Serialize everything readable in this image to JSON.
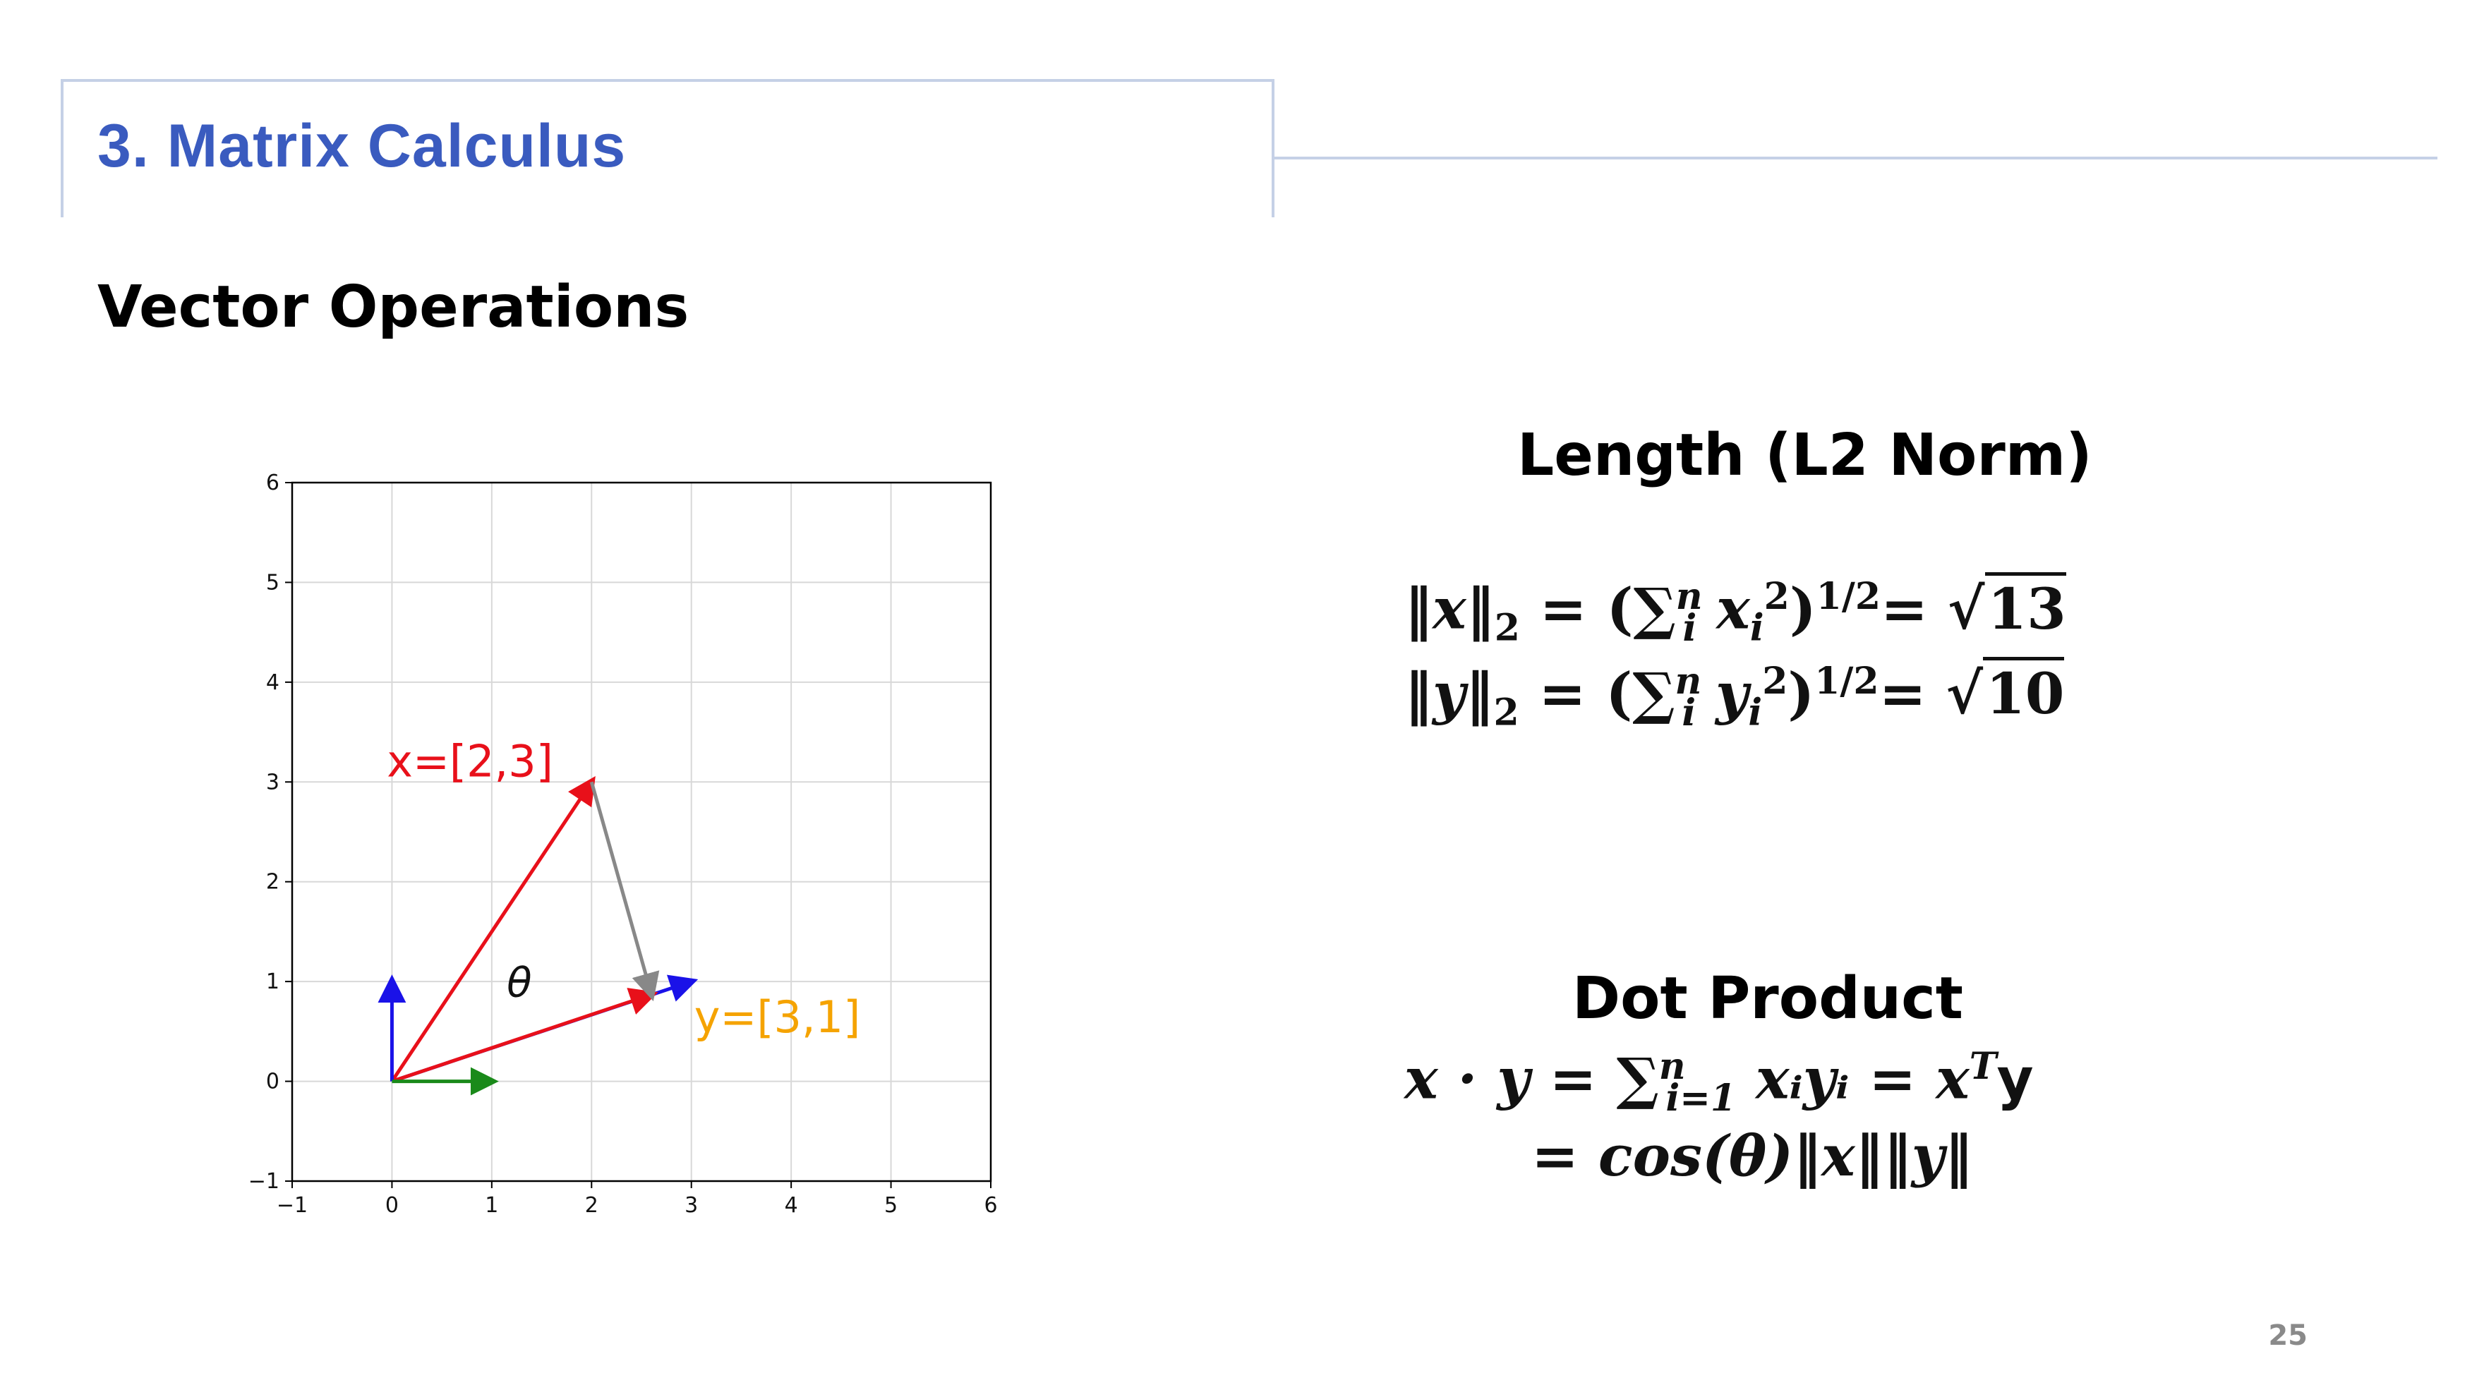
{
  "section": {
    "title": "3. Matrix Calculus"
  },
  "heading": "Vector Operations",
  "l2": {
    "title": "Length (L2 Norm)",
    "x_norm_lhs": "‖x‖",
    "x_norm_sub": "2",
    "x_sum_var": "x",
    "x_result": "13",
    "y_norm_lhs": "‖y‖",
    "y_norm_sub": "2",
    "y_sum_var": "y",
    "y_result": "10",
    "sum_idx": "i",
    "sum_up": "n",
    "power_inner": "2",
    "power_outer": "1/2"
  },
  "dot": {
    "title": "Dot Product",
    "line1_lhs": "x · y",
    "sum_lower": "i=1",
    "sum_upper": "n",
    "term": "xᵢyᵢ",
    "rhs_x": "x",
    "rhs_T": "T",
    "rhs_y": "y",
    "line2": "= cos(θ)‖x‖‖y‖"
  },
  "page_number": "25",
  "chart_data": {
    "type": "vector-plot",
    "xlim": [
      -1,
      6
    ],
    "ylim": [
      -1,
      6
    ],
    "xticks": [
      "−1",
      "0",
      "1",
      "2",
      "3",
      "4",
      "5",
      "6"
    ],
    "yticks": [
      "−1",
      "0",
      "1",
      "2",
      "3",
      "4",
      "5",
      "6"
    ],
    "grid": true,
    "vectors": [
      {
        "name": "x",
        "from": [
          0,
          0
        ],
        "to": [
          2,
          3
        ],
        "color": "#e8101a",
        "label": "x=[2,3]"
      },
      {
        "name": "y",
        "from": [
          0,
          0
        ],
        "to": [
          3,
          1
        ],
        "color": "#1a12e8",
        "label": "y=[3,1]",
        "label_color": "#f5a300"
      },
      {
        "name": "y-scaled",
        "from": [
          0,
          0
        ],
        "to": [
          2.6,
          0.87
        ],
        "color": "#e8101a"
      },
      {
        "name": "projection",
        "from": [
          2,
          3
        ],
        "to": [
          2.6,
          0.87
        ],
        "color": "#888888"
      },
      {
        "name": "e2",
        "from": [
          0,
          0
        ],
        "to": [
          0,
          1
        ],
        "color": "#1a12e8"
      },
      {
        "name": "e1",
        "from": [
          0,
          0
        ],
        "to": [
          1,
          0
        ],
        "color": "#1a8a1a"
      }
    ],
    "annotation": {
      "text": "θ",
      "at": [
        1.15,
        0.85
      ]
    }
  }
}
